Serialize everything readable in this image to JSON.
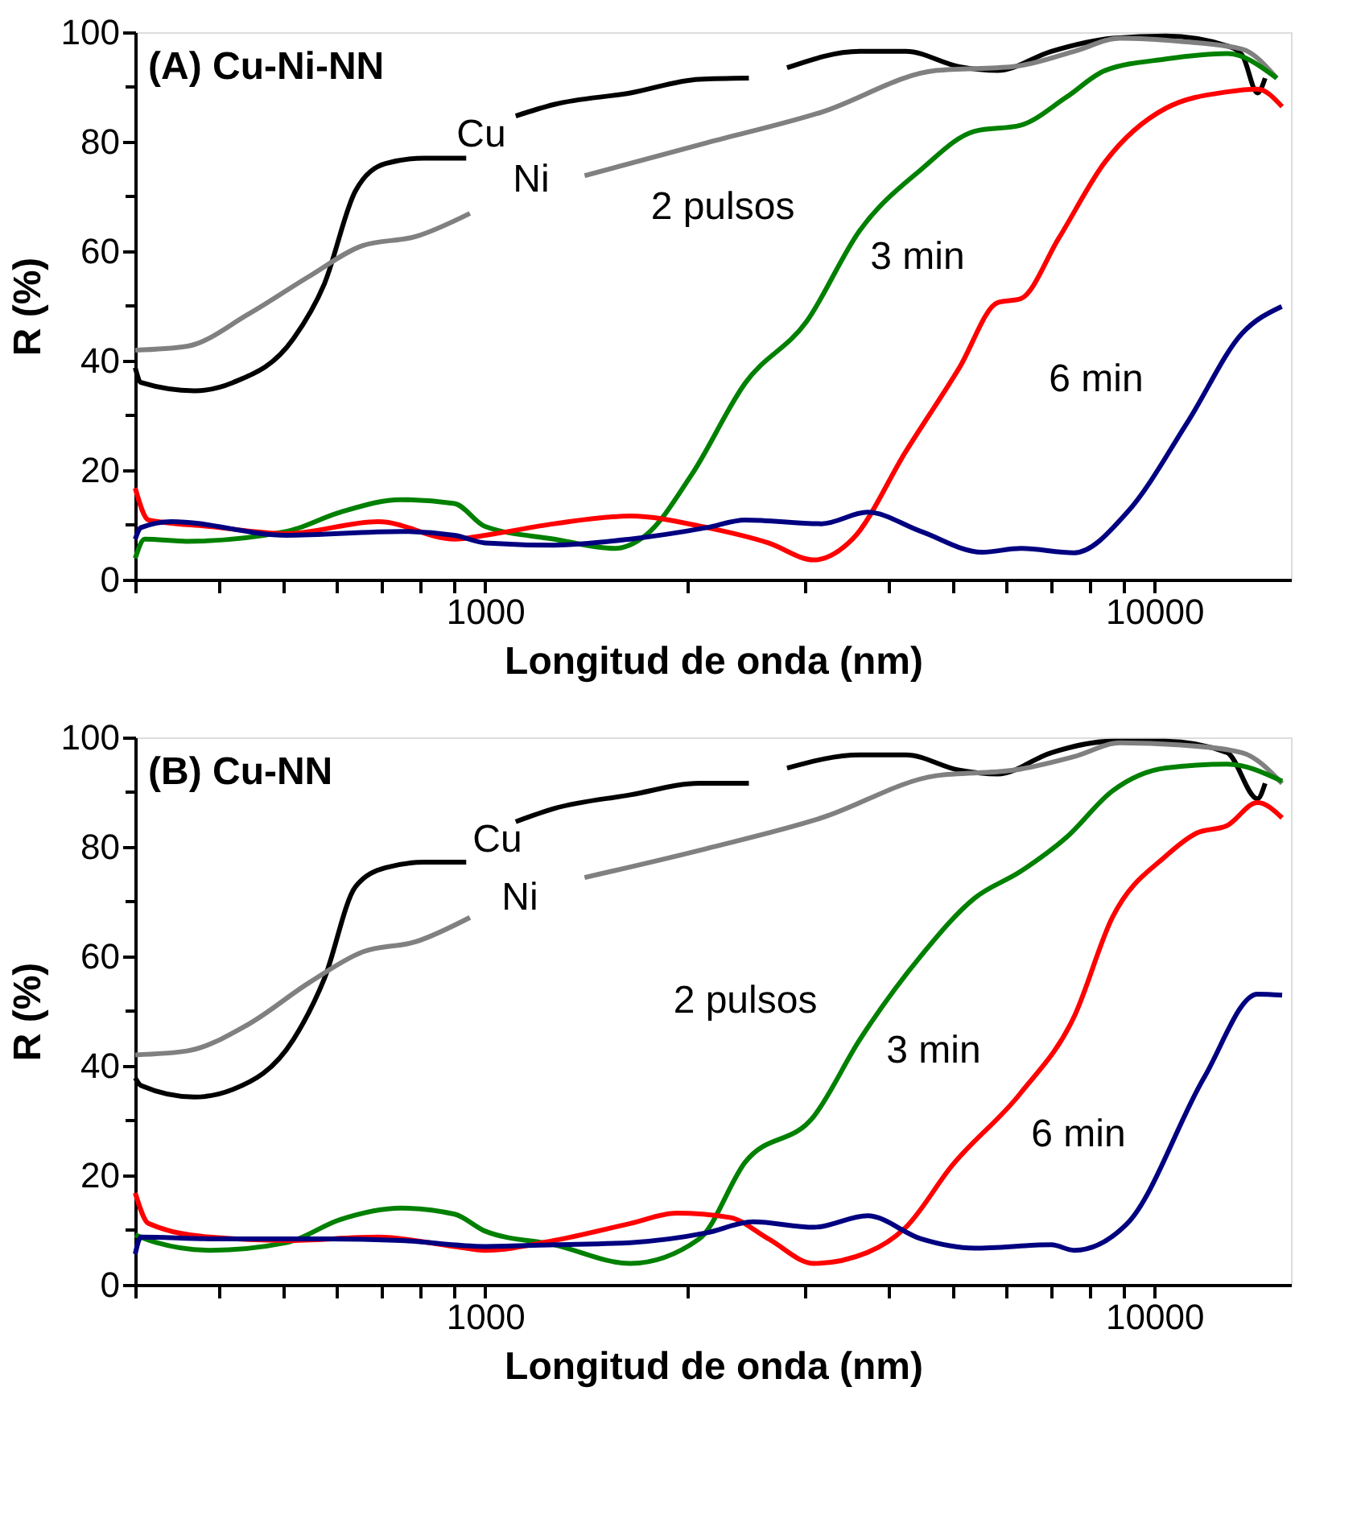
{
  "chart_data": [
    {
      "type": "line",
      "title": "(A) Cu-Ni-NN",
      "xlabel": "Longitud de onda (nm)",
      "ylabel": "R (%)",
      "log": "x",
      "grid": false,
      "legend": false,
      "marker": "none",
      "line_style": "solid",
      "xlim": [
        300,
        16000
      ],
      "ylim": [
        0,
        100
      ],
      "xticks": [
        {
          "value": 300,
          "label": null
        },
        {
          "value": 400,
          "label": null
        },
        {
          "value": 500,
          "label": null
        },
        {
          "value": 600,
          "label": null
        },
        {
          "value": 700,
          "label": null
        },
        {
          "value": 800,
          "label": null
        },
        {
          "value": 900,
          "label": null
        },
        1000,
        {
          "value": 2000,
          "label": null
        },
        {
          "value": 3000,
          "label": null
        },
        {
          "value": 4000,
          "label": null
        },
        {
          "value": 5000,
          "label": null
        },
        {
          "value": 6000,
          "label": null
        },
        {
          "value": 7000,
          "label": null
        },
        {
          "value": 8000,
          "label": null
        },
        {
          "value": 9000,
          "label": null
        },
        10000
      ],
      "yticks": [
        0,
        {
          "value": 10,
          "label": null
        },
        20,
        {
          "value": 30,
          "label": null
        },
        40,
        {
          "value": 50,
          "label": null
        },
        60,
        {
          "value": 70,
          "label": null
        },
        80,
        {
          "value": 90,
          "label": null
        },
        100
      ],
      "series": [
        {
          "color": "#000000",
          "x": [
            300,
            306,
            368,
            420,
            517,
            575,
            640,
            710,
            811,
            937,
            1000,
            1111,
            1268,
            1648,
            2090,
            2478,
            2650,
            2826,
            3630,
            4252,
            5112,
            5834,
            7015,
            8655,
            10400,
            12850,
            13530,
            14260,
            14640
          ],
          "values": [
            38.7,
            36,
            34.5,
            36,
            44,
            54,
            71,
            76,
            77,
            77,
            null,
            84.7,
            86.8,
            88.9,
            91.4,
            91.6,
            null,
            93.5,
            96.5,
            96.5,
            93.7,
            93,
            96.5,
            98.9,
            99.3,
            97.5,
            95.8,
            88.9,
            91.6
          ]
        },
        {
          "color": "#808080",
          "x": [
            300,
            358,
            443,
            546,
            656,
            789,
            949,
            1150,
            1408,
            2144,
            3183,
            4720,
            6150,
            7590,
            8890,
            10970,
            13530,
            15240
          ],
          "values": [
            41.9,
            42.6,
            48.5,
            55.4,
            61,
            62.7,
            66.9,
            null,
            73.8,
            79.8,
            85.4,
            93,
            93.7,
            96.5,
            98.9,
            98.3,
            96.9,
            91.6
          ]
        },
        {
          "color": "#008000",
          "x": [
            300,
            310,
            358,
            505,
            607,
            748,
            900,
            1000,
            1268,
            1563,
            1738,
            2036,
            2447,
            3020,
            3630,
            4480,
            5385,
            6310,
            7400,
            8440,
            10400,
            12850,
            15240
          ],
          "values": [
            3.9,
            7.4,
            7,
            8.8,
            12.3,
            14.6,
            13.9,
            9.7,
            7.4,
            5.7,
            8.1,
            19.2,
            35.9,
            47.1,
            63.8,
            74.9,
            81.9,
            83,
            88.2,
            93,
            95.1,
            96.1,
            91.6
          ]
        },
        {
          "color": "#ff0000",
          "x": [
            300,
            314,
            388,
            505,
            692,
            900,
            1000,
            1268,
            1648,
            2144,
            2650,
            3100,
            3540,
            4252,
            5112,
            5834,
            6310,
            7200,
            8440,
            10400,
            12850,
            14260,
            15520
          ],
          "values": [
            16.7,
            10.9,
            9.7,
            8.4,
            10.6,
            7.4,
            8.1,
            10.2,
            11.6,
            9.5,
            6.7,
            3.6,
            7.4,
            23.4,
            38.7,
            50.6,
            51.3,
            62.4,
            76.3,
            86.1,
            89.1,
            89.6,
            86.4
          ]
        },
        {
          "color": "#000080",
          "x": [
            300,
            306,
            340,
            505,
            748,
            900,
            1000,
            1268,
            1648,
            2144,
            2447,
            3183,
            3726,
            4480,
            5530,
            6310,
            7590,
            9110,
            11240,
            13530,
            15500
          ],
          "values": [
            7.4,
            9.5,
            10.6,
            8.1,
            8.8,
            8.1,
            6.7,
            6.3,
            7.4,
            9.5,
            10.9,
            10.2,
            12.3,
            8.8,
            5,
            5.7,
            4.9,
            12.3,
            29,
            45,
            49.9
          ]
        }
      ],
      "annotations": [
        "Cu",
        "Ni",
        "2 pulsos",
        "3 min",
        "6 min"
      ]
    },
    {
      "type": "line",
      "title": "(B) Cu-NN",
      "xlabel": "Longitud de onda (nm)",
      "ylabel": "R (%)",
      "log": "x",
      "grid": false,
      "legend": false,
      "marker": "none",
      "line_style": "solid",
      "xlim": [
        300,
        16000
      ],
      "ylim": [
        0,
        100
      ],
      "xticks": [
        {
          "value": 300,
          "label": null
        },
        {
          "value": 400,
          "label": null
        },
        {
          "value": 500,
          "label": null
        },
        {
          "value": 600,
          "label": null
        },
        {
          "value": 700,
          "label": null
        },
        {
          "value": 800,
          "label": null
        },
        {
          "value": 900,
          "label": null
        },
        1000,
        {
          "value": 2000,
          "label": null
        },
        {
          "value": 3000,
          "label": null
        },
        {
          "value": 4000,
          "label": null
        },
        {
          "value": 5000,
          "label": null
        },
        {
          "value": 6000,
          "label": null
        },
        {
          "value": 7000,
          "label": null
        },
        {
          "value": 8000,
          "label": null
        },
        {
          "value": 9000,
          "label": null
        },
        10000
      ],
      "yticks": [
        0,
        {
          "value": 10,
          "label": null
        },
        20,
        {
          "value": 30,
          "label": null
        },
        40,
        {
          "value": 50,
          "label": null
        },
        60,
        {
          "value": 70,
          "label": null
        },
        80,
        {
          "value": 90,
          "label": null
        },
        100
      ],
      "series": [
        {
          "color": "#000000",
          "x": [
            300,
            306,
            368,
            420,
            517,
            575,
            640,
            710,
            811,
            937,
            1000,
            1111,
            1268,
            1648,
            2090,
            2478,
            2650,
            2826,
            3630,
            4252,
            5112,
            5834,
            7015,
            8655,
            10400,
            12850,
            14260,
            14640
          ],
          "values": [
            37.8,
            36.4,
            34.3,
            35.7,
            44.8,
            55.9,
            72.7,
            76.2,
            77.2,
            77.2,
            null,
            84.6,
            87,
            89.5,
            91.6,
            91.6,
            null,
            94.4,
            96.8,
            96.8,
            94,
            93.3,
            97.2,
            99.3,
            99.3,
            97.2,
            88.8,
            91.6
          ]
        },
        {
          "color": "#808080",
          "x": [
            300,
            358,
            443,
            546,
            656,
            789,
            949,
            1150,
            1408,
            2144,
            3183,
            4720,
            6150,
            7590,
            8890,
            10970,
            13530,
            15520
          ],
          "values": [
            42,
            42.7,
            47.6,
            55.2,
            60.8,
            62.7,
            67.1,
            null,
            74.4,
            79.7,
            85.3,
            93,
            94,
            96.5,
            99,
            98.6,
            97.2,
            91.6
          ]
        },
        {
          "color": "#008000",
          "x": [
            300,
            323,
            388,
            505,
            607,
            748,
            900,
            1000,
            1268,
            1648,
            2090,
            2447,
            3100,
            3630,
            4480,
            5385,
            6310,
            7400,
            8655,
            10400,
            12850,
            15520
          ],
          "values": [
            9.1,
            7.7,
            6.3,
            7.7,
            11.9,
            14,
            12.9,
            9.8,
            7.3,
            3.9,
            8.4,
            22.4,
            30.8,
            44.8,
            60.1,
            70.6,
            75.5,
            81.8,
            90.2,
            94.4,
            95.1,
            92
          ]
        },
        {
          "color": "#ff0000",
          "x": [
            300,
            314,
            388,
            505,
            692,
            900,
            1000,
            1268,
            1648,
            1931,
            2321,
            2650,
            3100,
            3726,
            4252,
            4980,
            6310,
            7590,
            8655,
            10400,
            11560,
            12850,
            14260,
            15520
          ],
          "values": [
            16.8,
            11.2,
            8.7,
            8.1,
            8.7,
            7,
            6.3,
            8.1,
            11.2,
            13.1,
            12.3,
            8.4,
            3.9,
            5.9,
            10.5,
            21.7,
            35,
            49,
            67.1,
            78.3,
            82.5,
            83.9,
            88.1,
            85.3
          ]
        },
        {
          "color": "#000080",
          "x": [
            300,
            306,
            388,
            575,
            748,
            1000,
            1268,
            1648,
            2144,
            2512,
            3100,
            3726,
            4480,
            5385,
            7015,
            7590,
            9110,
            11860,
            14260,
            15520
          ],
          "values": [
            5.6,
            8.7,
            8.4,
            8.4,
            8.1,
            7,
            7.3,
            7.7,
            9.5,
            11.5,
            10.5,
            12.6,
            8.4,
            6.7,
            7.3,
            6.3,
            11.2,
            37.8,
            53.1,
            52.9
          ]
        }
      ],
      "annotations": [
        "Cu",
        "Ni",
        "2 pulsos",
        "3 min",
        "6 min"
      ]
    }
  ]
}
